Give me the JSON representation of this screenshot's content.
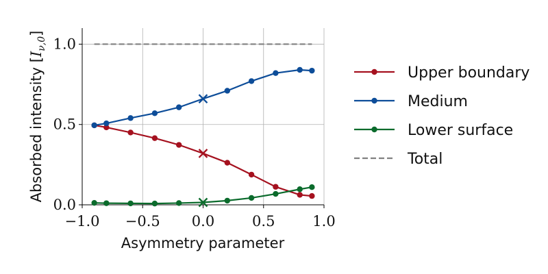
{
  "chart_data": {
    "type": "line",
    "xlabel": "Asymmetry parameter",
    "ylabel_text": "Absorbed intensity [",
    "ylabel_symbol": "I",
    "ylabel_subscript": "ν,0",
    "ylabel_close": "]",
    "xlim": [
      -1.0,
      1.0
    ],
    "ylim": [
      0.0,
      1.1
    ],
    "x_ticks": [
      -1.0,
      -0.5,
      0.0,
      0.5,
      1.0
    ],
    "x_tick_labels": [
      "−1.0",
      "−0.5",
      "0.0",
      "0.5",
      "1.0"
    ],
    "y_ticks": [
      0.0,
      0.5,
      1.0
    ],
    "y_tick_labels": [
      "0.0",
      "0.5",
      "1.0"
    ],
    "grid": true,
    "legend_position": "right",
    "x": [
      -0.9,
      -0.8,
      -0.6,
      -0.4,
      -0.2,
      0.0,
      0.2,
      0.4,
      0.6,
      0.8,
      0.9
    ],
    "series": [
      {
        "name": "Upper boundary",
        "color": "#a5111f",
        "style": "solid-markers",
        "values": [
          0.495,
          0.482,
          0.45,
          0.415,
          0.373,
          0.32,
          0.262,
          0.188,
          0.112,
          0.062,
          0.055
        ]
      },
      {
        "name": "Medium",
        "color": "#0d4d99",
        "style": "solid-markers",
        "values": [
          0.495,
          0.507,
          0.54,
          0.57,
          0.607,
          0.66,
          0.71,
          0.77,
          0.82,
          0.84,
          0.835
        ]
      },
      {
        "name": "Lower surface",
        "color": "#0b6b2c",
        "style": "solid-markers",
        "values": [
          0.012,
          0.01,
          0.009,
          0.008,
          0.011,
          0.015,
          0.026,
          0.043,
          0.068,
          0.097,
          0.11
        ]
      },
      {
        "name": "Total",
        "color": "#808080",
        "style": "dashed",
        "x": [
          -0.9,
          0.9
        ],
        "values": [
          1.0,
          1.0
        ]
      }
    ],
    "highlight_markers": [
      {
        "series": "Upper boundary",
        "x": 0.0,
        "y": 0.32,
        "marker": "x"
      },
      {
        "series": "Medium",
        "x": 0.0,
        "y": 0.66,
        "marker": "x"
      },
      {
        "series": "Lower surface",
        "x": 0.0,
        "y": 0.015,
        "marker": "x"
      }
    ]
  }
}
